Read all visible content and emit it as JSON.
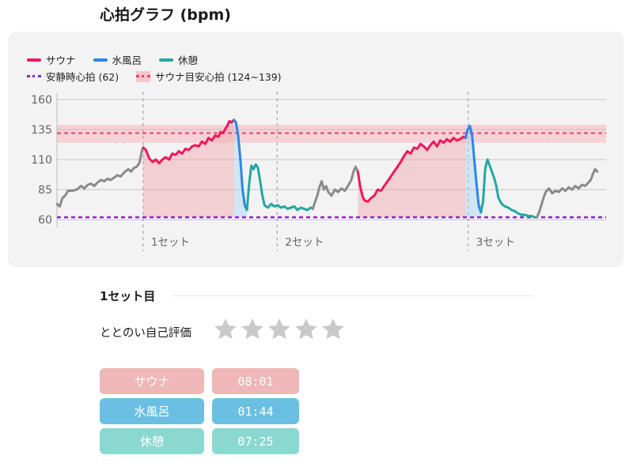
{
  "title": "心拍グラフ (bpm)",
  "legend": {
    "sauna": "サウナ",
    "mizuburo": "水風呂",
    "kyukei": "休憩",
    "resting": "安静時心拍 (62)",
    "target": "サウナ目安心拍 (124~139)"
  },
  "colors": {
    "sauna": "#f0185c",
    "mizuburo": "#2b86e8",
    "kyukei": "#20a8a0",
    "other": "#8a8a8a",
    "resting": "#8a20e0",
    "target": "#f0406a",
    "target_band": "#f7c6cc"
  },
  "chart_data": {
    "type": "line",
    "ylim": [
      60,
      160
    ],
    "yticks": [
      60,
      85,
      110,
      135,
      160
    ],
    "resting_hr": 62,
    "target_range": [
      124,
      139
    ],
    "target_line": 132,
    "sets": [
      {
        "label": "1セット",
        "start": 0.157
      },
      {
        "label": "2セット",
        "start": 0.401
      },
      {
        "label": "3セット",
        "start": 0.749
      }
    ],
    "series": [
      {
        "name": "other",
        "points": [
          [
            0.0,
            73
          ],
          [
            0.005,
            71
          ],
          [
            0.01,
            78
          ],
          [
            0.015,
            80
          ],
          [
            0.02,
            84
          ],
          [
            0.028,
            84
          ],
          [
            0.036,
            85
          ],
          [
            0.044,
            88
          ],
          [
            0.05,
            86
          ],
          [
            0.056,
            89
          ],
          [
            0.062,
            90
          ],
          [
            0.068,
            88
          ],
          [
            0.074,
            91
          ],
          [
            0.08,
            93
          ],
          [
            0.086,
            92
          ],
          [
            0.092,
            94
          ],
          [
            0.098,
            93
          ],
          [
            0.104,
            95
          ],
          [
            0.11,
            97
          ],
          [
            0.116,
            96
          ],
          [
            0.12,
            98
          ],
          [
            0.124,
            100
          ],
          [
            0.13,
            102
          ],
          [
            0.135,
            100
          ],
          [
            0.14,
            103
          ],
          [
            0.145,
            104
          ],
          [
            0.15,
            107
          ],
          [
            0.155,
            118
          ],
          [
            0.157,
            120
          ]
        ]
      },
      {
        "name": "sauna",
        "points": [
          [
            0.157,
            120
          ],
          [
            0.162,
            118
          ],
          [
            0.168,
            111
          ],
          [
            0.174,
            108
          ],
          [
            0.18,
            110
          ],
          [
            0.186,
            107
          ],
          [
            0.192,
            110
          ],
          [
            0.198,
            112
          ],
          [
            0.204,
            110
          ],
          [
            0.21,
            115
          ],
          [
            0.216,
            114
          ],
          [
            0.222,
            117
          ],
          [
            0.228,
            115
          ],
          [
            0.234,
            119
          ],
          [
            0.24,
            118
          ],
          [
            0.246,
            121
          ],
          [
            0.252,
            122
          ],
          [
            0.258,
            121
          ],
          [
            0.264,
            125
          ],
          [
            0.27,
            123
          ],
          [
            0.276,
            128
          ],
          [
            0.282,
            126
          ],
          [
            0.288,
            130
          ],
          [
            0.294,
            129
          ],
          [
            0.298,
            133
          ],
          [
            0.302,
            132
          ],
          [
            0.306,
            135
          ],
          [
            0.31,
            138
          ],
          [
            0.314,
            142
          ],
          [
            0.318,
            141
          ],
          [
            0.322,
            143
          ]
        ]
      },
      {
        "name": "mizuburo",
        "points": [
          [
            0.322,
            143
          ],
          [
            0.326,
            141
          ],
          [
            0.33,
            130
          ],
          [
            0.334,
            110
          ],
          [
            0.338,
            85
          ],
          [
            0.342,
            72
          ],
          [
            0.346,
            68
          ]
        ]
      },
      {
        "name": "kyukei",
        "points": [
          [
            0.346,
            68
          ],
          [
            0.35,
            90
          ],
          [
            0.354,
            105
          ],
          [
            0.358,
            102
          ],
          [
            0.362,
            106
          ],
          [
            0.366,
            103
          ],
          [
            0.37,
            92
          ],
          [
            0.374,
            80
          ],
          [
            0.378,
            72
          ],
          [
            0.384,
            70
          ],
          [
            0.39,
            73
          ],
          [
            0.396,
            71
          ],
          [
            0.402,
            72
          ],
          [
            0.408,
            70
          ],
          [
            0.414,
            71
          ],
          [
            0.42,
            69
          ],
          [
            0.426,
            70
          ],
          [
            0.432,
            71
          ],
          [
            0.438,
            68
          ],
          [
            0.444,
            70
          ],
          [
            0.45,
            69
          ],
          [
            0.456,
            68
          ],
          [
            0.462,
            70
          ],
          [
            0.466,
            69
          ]
        ]
      },
      {
        "name": "other",
        "points": [
          [
            0.466,
            69
          ],
          [
            0.47,
            75
          ],
          [
            0.474,
            80
          ],
          [
            0.478,
            87
          ],
          [
            0.482,
            92
          ],
          [
            0.486,
            85
          ],
          [
            0.49,
            88
          ],
          [
            0.494,
            83
          ],
          [
            0.5,
            80
          ],
          [
            0.506,
            85
          ],
          [
            0.512,
            83
          ],
          [
            0.518,
            86
          ],
          [
            0.524,
            84
          ],
          [
            0.53,
            88
          ],
          [
            0.536,
            93
          ],
          [
            0.54,
            100
          ],
          [
            0.544,
            104
          ],
          [
            0.548,
            100
          ]
        ]
      },
      {
        "name": "sauna",
        "points": [
          [
            0.548,
            100
          ],
          [
            0.552,
            88
          ],
          [
            0.556,
            80
          ],
          [
            0.56,
            76
          ],
          [
            0.566,
            75
          ],
          [
            0.572,
            78
          ],
          [
            0.578,
            80
          ],
          [
            0.584,
            85
          ],
          [
            0.59,
            84
          ],
          [
            0.596,
            88
          ],
          [
            0.602,
            92
          ],
          [
            0.608,
            96
          ],
          [
            0.614,
            100
          ],
          [
            0.62,
            104
          ],
          [
            0.626,
            108
          ],
          [
            0.632,
            113
          ],
          [
            0.638,
            117
          ],
          [
            0.644,
            115
          ],
          [
            0.65,
            120
          ],
          [
            0.656,
            119
          ],
          [
            0.662,
            123
          ],
          [
            0.668,
            121
          ],
          [
            0.674,
            118
          ],
          [
            0.68,
            122
          ],
          [
            0.686,
            125
          ],
          [
            0.692,
            121
          ],
          [
            0.698,
            126
          ],
          [
            0.704,
            124
          ],
          [
            0.71,
            127
          ],
          [
            0.716,
            125
          ],
          [
            0.722,
            128
          ],
          [
            0.728,
            126
          ],
          [
            0.734,
            127
          ],
          [
            0.74,
            129
          ],
          [
            0.744,
            128
          ]
        ]
      },
      {
        "name": "mizuburo",
        "points": [
          [
            0.744,
            128
          ],
          [
            0.748,
            135
          ],
          [
            0.752,
            138
          ],
          [
            0.756,
            130
          ],
          [
            0.76,
            110
          ],
          [
            0.764,
            90
          ],
          [
            0.768,
            72
          ],
          [
            0.772,
            66
          ]
        ]
      },
      {
        "name": "kyukei",
        "points": [
          [
            0.772,
            66
          ],
          [
            0.776,
            75
          ],
          [
            0.78,
            103
          ],
          [
            0.784,
            110
          ],
          [
            0.788,
            105
          ],
          [
            0.792,
            100
          ],
          [
            0.796,
            95
          ],
          [
            0.8,
            88
          ],
          [
            0.804,
            78
          ],
          [
            0.81,
            73
          ],
          [
            0.816,
            71
          ],
          [
            0.822,
            70
          ],
          [
            0.828,
            68
          ],
          [
            0.834,
            67
          ],
          [
            0.84,
            65
          ],
          [
            0.846,
            64
          ],
          [
            0.852,
            64
          ],
          [
            0.858,
            63
          ],
          [
            0.864,
            63
          ],
          [
            0.87,
            62
          ],
          [
            0.874,
            62
          ]
        ]
      },
      {
        "name": "other",
        "points": [
          [
            0.874,
            62
          ],
          [
            0.878,
            66
          ],
          [
            0.882,
            72
          ],
          [
            0.886,
            78
          ],
          [
            0.89,
            83
          ],
          [
            0.896,
            86
          ],
          [
            0.902,
            82
          ],
          [
            0.908,
            84
          ],
          [
            0.914,
            83
          ],
          [
            0.92,
            86
          ],
          [
            0.926,
            84
          ],
          [
            0.932,
            87
          ],
          [
            0.938,
            85
          ],
          [
            0.944,
            88
          ],
          [
            0.95,
            86
          ],
          [
            0.956,
            89
          ],
          [
            0.962,
            88
          ],
          [
            0.968,
            91
          ],
          [
            0.972,
            93
          ],
          [
            0.976,
            98
          ],
          [
            0.98,
            102
          ],
          [
            0.984,
            100
          ]
        ]
      }
    ]
  },
  "section": {
    "title": "1セット目",
    "rating_label": "ととのい自己評価",
    "rating": 0,
    "rating_max": 5
  },
  "phases": [
    {
      "name": "サウナ",
      "time": "08:01",
      "color": "#efb7b7"
    },
    {
      "name": "水風呂",
      "time": "01:44",
      "color": "#6bbfe3"
    },
    {
      "name": "休憩",
      "time": "07:25",
      "color": "#8bd8d0"
    }
  ]
}
